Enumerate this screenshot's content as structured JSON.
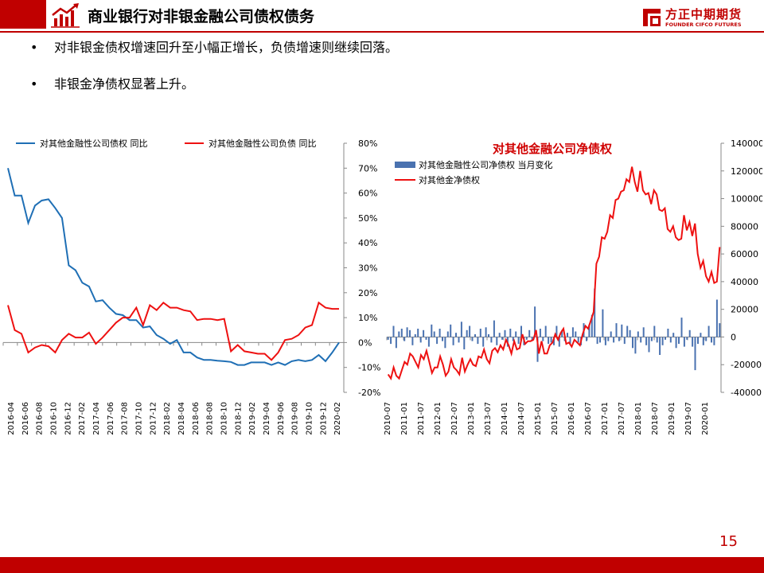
{
  "header": {
    "title": "商业银行对非银金融公司债权债务"
  },
  "logo": {
    "cn": "方正中期期货",
    "en": "FOUNDER CIFCO FUTURES"
  },
  "bullets": [
    "对非银金债权增速回升至小幅正增长，负债增速则继续回落。",
    "非银金净债权显著上升。"
  ],
  "bullet_mark": "•",
  "page_number": "15",
  "colors": {
    "brand": "#c00000",
    "blue": "#1f6fb5",
    "red": "#ee1111",
    "bar": "#4a72b0",
    "title_red": "#d00000"
  },
  "chart_data": [
    {
      "type": "line",
      "title": "",
      "ylim": [
        -0.2,
        0.8
      ],
      "y_ticks": [
        "80%",
        "70%",
        "60%",
        "50%",
        "40%",
        "30%",
        "20%",
        "10%",
        "0%",
        "-10%",
        "-20%"
      ],
      "x_tick_labels": [
        "2016-04",
        "2016-06",
        "2016-08",
        "2016-10",
        "2016-12",
        "2017-02",
        "2017-04",
        "2017-06",
        "2017-08",
        "2017-10",
        "2017-12",
        "2018-02",
        "2018-04",
        "2018-06",
        "2018-08",
        "2018-10",
        "2018-12",
        "2019-02",
        "2019-04",
        "2019-06",
        "2019-08",
        "2019-10",
        "2019-12",
        "2020-02"
      ],
      "legend_position": "top",
      "series": [
        {
          "name": "对其他金融性公司债权  同比",
          "color": "#1f6fb5",
          "values": [
            0.7,
            0.59,
            0.59,
            0.48,
            0.55,
            0.57,
            0.575,
            0.54,
            0.5,
            0.31,
            0.29,
            0.24,
            0.225,
            0.165,
            0.17,
            0.14,
            0.115,
            0.11,
            0.09,
            0.09,
            0.06,
            0.065,
            0.03,
            0.015,
            -0.005,
            0.01,
            -0.04,
            -0.04,
            -0.06,
            -0.07,
            -0.07,
            -0.073,
            -0.075,
            -0.078,
            -0.09,
            -0.09,
            -0.08,
            -0.08,
            -0.08,
            -0.09,
            -0.08,
            -0.09,
            -0.075,
            -0.07,
            -0.075,
            -0.07,
            -0.05,
            -0.075,
            -0.04,
            0.0
          ]
        },
        {
          "name": "对其他金融性公司负债  同比",
          "color": "#ee1111",
          "values": [
            0.15,
            0.05,
            0.035,
            -0.04,
            -0.02,
            -0.01,
            -0.015,
            -0.04,
            0.01,
            0.035,
            0.02,
            0.02,
            0.04,
            -0.005,
            0.02,
            0.05,
            0.08,
            0.1,
            0.1,
            0.14,
            0.07,
            0.15,
            0.13,
            0.16,
            0.14,
            0.14,
            0.13,
            0.125,
            0.09,
            0.095,
            0.095,
            0.09,
            0.095,
            -0.035,
            -0.01,
            -0.035,
            -0.04,
            -0.045,
            -0.045,
            -0.07,
            -0.04,
            0.01,
            0.015,
            0.03,
            0.06,
            0.07,
            0.16,
            0.14,
            0.135,
            0.135
          ]
        }
      ]
    },
    {
      "type": "bar+line",
      "title": "对其他金融公司净债权",
      "ylim": [
        -40000,
        140000
      ],
      "y_ticks": [
        "140000",
        "120000",
        "100000",
        "80000",
        "60000",
        "40000",
        "20000",
        "0",
        "-20000",
        "-40000"
      ],
      "x_tick_labels": [
        "2010-07",
        "2011-01",
        "2011-07",
        "2012-01",
        "2012-07",
        "2013-01",
        "2013-07",
        "2014-01",
        "2014-07",
        "2015-01",
        "2015-07",
        "2016-01",
        "2016-07",
        "2017-01",
        "2017-07",
        "2018-01",
        "2018-07",
        "2019-01",
        "2019-07",
        "2020-01"
      ],
      "legend_position": "top-left",
      "series": [
        {
          "name": "对其他金融性公司净债权 当月变化",
          "color": "#4a72b0",
          "kind": "bar",
          "values": [
            -2000,
            -5000,
            8000,
            -8000,
            4000,
            6000,
            -3000,
            7000,
            5000,
            -6000,
            2000,
            6000,
            -4000,
            5000,
            -2000,
            -7000,
            9000,
            4000,
            -5000,
            6000,
            -3000,
            -8000,
            4000,
            9000,
            -6000,
            3000,
            -4000,
            11000,
            -9000,
            5000,
            8000,
            -3000,
            2000,
            -5000,
            6000,
            -7000,
            7000,
            2000,
            -4000,
            12000,
            -6000,
            3000,
            -2000,
            5000,
            -7000,
            6000,
            -3000,
            4000,
            -5000,
            8000,
            -6000,
            -2000,
            5000,
            -3000,
            22000,
            -18000,
            6000,
            -3000,
            8000,
            -5000,
            -4000,
            -6000,
            8000,
            -7000,
            5000,
            -3000,
            3000,
            -5000,
            7000,
            4000,
            -4000,
            -6000,
            10000,
            -3000,
            9000,
            16000,
            35000,
            -5000,
            -4000,
            20000,
            -6000,
            -3000,
            4000,
            -4000,
            10000,
            -3000,
            9000,
            -5000,
            8000,
            5000,
            -8000,
            -12000,
            4000,
            -4000,
            7000,
            -6000,
            -11000,
            -3000,
            8000,
            -4000,
            -13000,
            -6000,
            -2000,
            6000,
            -4000,
            3000,
            -8000,
            -5000,
            14000,
            -7000,
            -2000,
            5000,
            -7000,
            -24000,
            -5000,
            3000,
            -6000,
            -3000,
            8000,
            -4000,
            -6000,
            27000,
            10000
          ]
        },
        {
          "name": "对其他金净债权",
          "color": "#ee1111",
          "kind": "line",
          "values": [
            -27000,
            -30000,
            -22000,
            -28000,
            -30000,
            -24000,
            -18000,
            -20000,
            -12000,
            -14000,
            -18000,
            -22000,
            -13000,
            -16000,
            -10000,
            -18000,
            -26000,
            -22000,
            -22000,
            -14000,
            -20000,
            -28000,
            -25000,
            -16000,
            -22000,
            -24000,
            -27000,
            -15000,
            -25000,
            -20000,
            -16000,
            -20000,
            -21000,
            -14000,
            -15000,
            -9000,
            -16000,
            -19000,
            -10000,
            -8000,
            -11000,
            -6000,
            -9000,
            -2000,
            -6000,
            -12000,
            -3000,
            -9000,
            -8000,
            2000,
            -5000,
            -3000,
            -3000,
            -2000,
            5000,
            -12000,
            -3000,
            -12000,
            -12000,
            -6000,
            -4000,
            2000,
            -2000,
            3000,
            6000,
            -5000,
            -4000,
            -7000,
            -2000,
            -4000,
            -6000,
            2000,
            8000,
            6000,
            12000,
            18000,
            53000,
            58000,
            72000,
            71000,
            76000,
            88000,
            86000,
            99000,
            100000,
            105000,
            106000,
            114000,
            112000,
            123000,
            112000,
            105000,
            120000,
            106000,
            103000,
            104000,
            96000,
            106000,
            103000,
            92000,
            91000,
            93000,
            78000,
            76000,
            80000,
            72000,
            70000,
            71000,
            88000,
            77000,
            83000,
            73000,
            82000,
            60000,
            50000,
            55000,
            44000,
            40000,
            47000,
            39000,
            40000,
            65000
          ]
        }
      ]
    }
  ]
}
